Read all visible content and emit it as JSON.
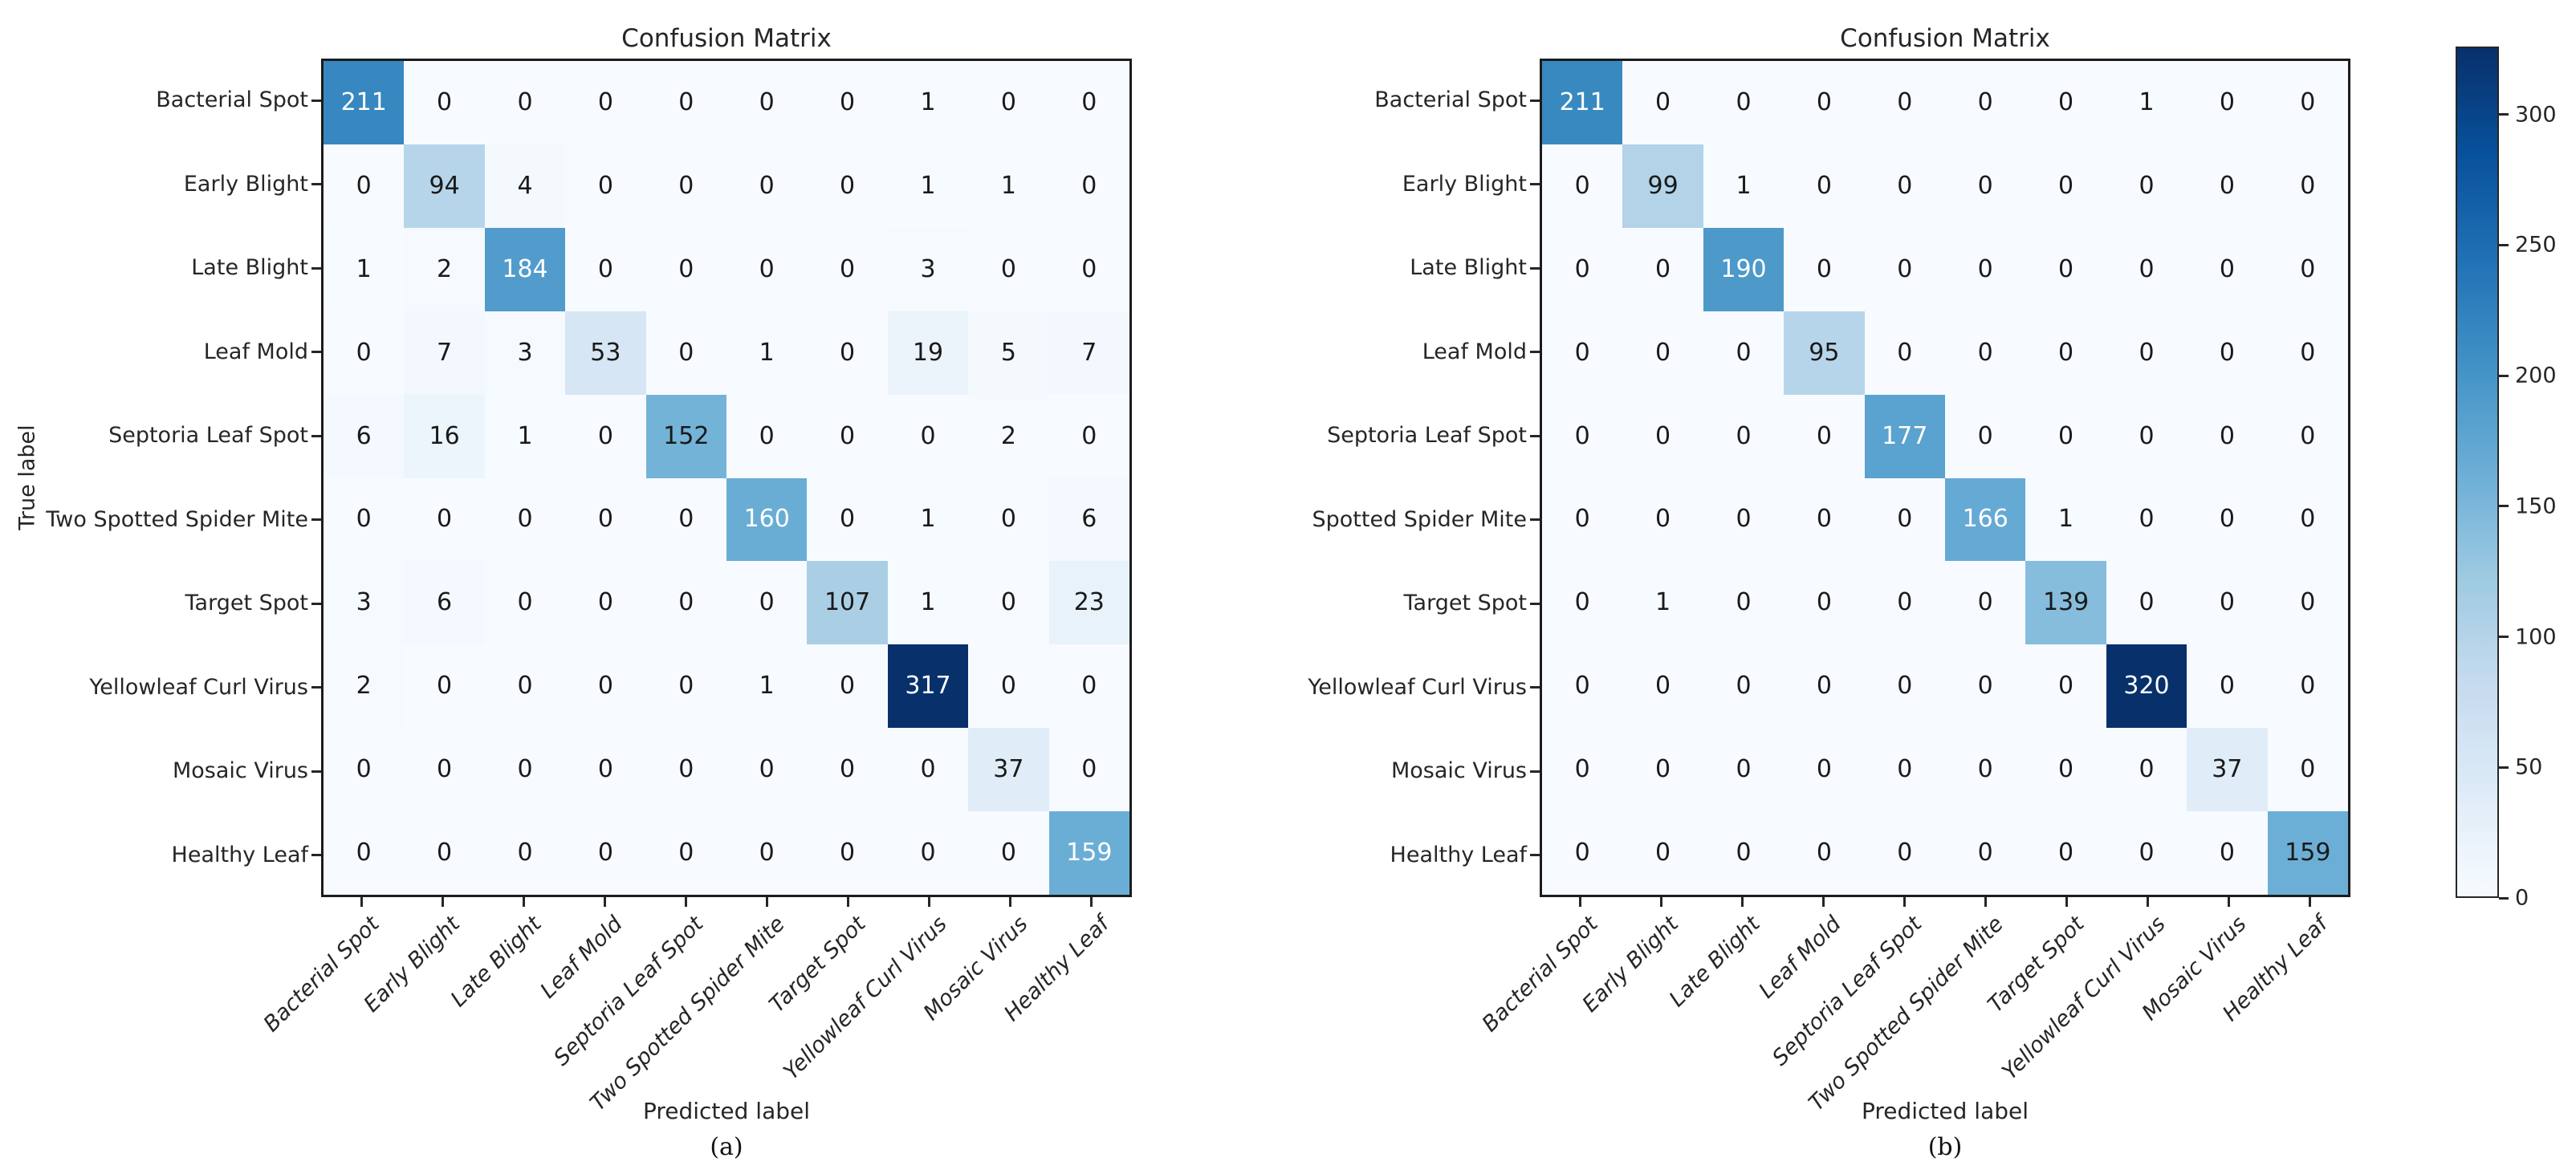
{
  "chart_data": [
    {
      "type": "heatmap",
      "title": "Confusion Matrix",
      "caption": "(a)",
      "xlabel": "Predicted label",
      "ylabel": "True label",
      "colormap": "Blues",
      "x_categories": [
        "Bacterial Spot",
        "Early Blight",
        "Late Blight",
        "Leaf Mold",
        "Septoria Leaf Spot",
        "Two Spotted Spider Mite",
        "Target Spot",
        "Yellowleaf Curl Virus",
        "Mosaic Virus",
        "Healthy Leaf"
      ],
      "y_categories": [
        "Bacterial Spot",
        "Early Blight",
        "Late Blight",
        "Leaf Mold",
        "Septoria Leaf Spot",
        "Two Spotted Spider Mite",
        "Target Spot",
        "Yellowleaf Curl Virus",
        "Mosaic Virus",
        "Healthy Leaf"
      ],
      "matrix": [
        [
          211,
          0,
          0,
          0,
          0,
          0,
          0,
          1,
          0,
          0
        ],
        [
          0,
          94,
          4,
          0,
          0,
          0,
          0,
          1,
          1,
          0
        ],
        [
          1,
          2,
          184,
          0,
          0,
          0,
          0,
          3,
          0,
          0
        ],
        [
          0,
          7,
          3,
          53,
          0,
          1,
          0,
          19,
          5,
          7
        ],
        [
          6,
          16,
          1,
          0,
          152,
          0,
          0,
          0,
          2,
          0
        ],
        [
          0,
          0,
          0,
          0,
          0,
          160,
          0,
          1,
          0,
          6
        ],
        [
          3,
          6,
          0,
          0,
          0,
          0,
          107,
          1,
          0,
          23
        ],
        [
          2,
          0,
          0,
          0,
          0,
          1,
          0,
          317,
          0,
          0
        ],
        [
          0,
          0,
          0,
          0,
          0,
          0,
          0,
          0,
          37,
          0
        ],
        [
          0,
          0,
          0,
          0,
          0,
          0,
          0,
          0,
          0,
          159
        ]
      ]
    },
    {
      "type": "heatmap",
      "title": "Confusion Matrix",
      "caption": "(b)",
      "xlabel": "Predicted label",
      "ylabel": "",
      "colormap": "Blues",
      "x_categories": [
        "Bacterial Spot",
        "Early Blight",
        "Late Blight",
        "Leaf Mold",
        "Septoria Leaf Spot",
        "Two Spotted Spider Mite",
        "Target Spot",
        "Yellowleaf Curl Virus",
        "Mosaic Virus",
        "Healthy Leaf"
      ],
      "y_categories": [
        "Bacterial Spot",
        "Early Blight",
        "Late Blight",
        "Leaf Mold",
        "Septoria Leaf Spot",
        "Spotted Spider Mite",
        "Target Spot",
        "Yellowleaf Curl Virus",
        "Mosaic Virus",
        "Healthy Leaf"
      ],
      "matrix": [
        [
          211,
          0,
          0,
          0,
          0,
          0,
          0,
          1,
          0,
          0
        ],
        [
          0,
          99,
          1,
          0,
          0,
          0,
          0,
          0,
          0,
          0
        ],
        [
          0,
          0,
          190,
          0,
          0,
          0,
          0,
          0,
          0,
          0
        ],
        [
          0,
          0,
          0,
          95,
          0,
          0,
          0,
          0,
          0,
          0
        ],
        [
          0,
          0,
          0,
          0,
          177,
          0,
          0,
          0,
          0,
          0
        ],
        [
          0,
          0,
          0,
          0,
          0,
          166,
          1,
          0,
          0,
          0
        ],
        [
          0,
          1,
          0,
          0,
          0,
          0,
          139,
          0,
          0,
          0
        ],
        [
          0,
          0,
          0,
          0,
          0,
          0,
          0,
          320,
          0,
          0
        ],
        [
          0,
          0,
          0,
          0,
          0,
          0,
          0,
          0,
          37,
          0
        ],
        [
          0,
          0,
          0,
          0,
          0,
          0,
          0,
          0,
          0,
          159
        ]
      ]
    }
  ],
  "colorbar": {
    "ticks": [
      0,
      50,
      100,
      150,
      200,
      250,
      300
    ],
    "range": [
      0,
      326
    ],
    "colormap": "Blues"
  }
}
